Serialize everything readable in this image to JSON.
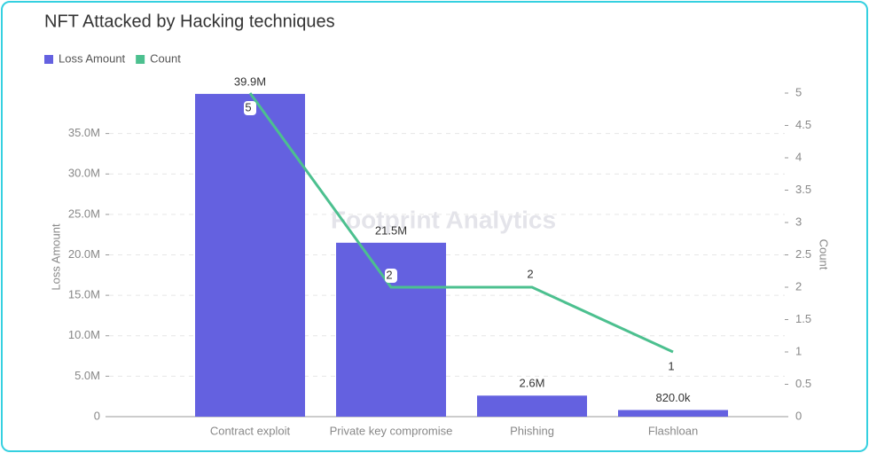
{
  "chart_data": {
    "type": "bar",
    "title": "NFT Attacked by Hacking techniques",
    "watermark": "Footprint Analytics",
    "ylabel": "Loss Amount",
    "y2label": "Count",
    "categories": [
      "Contract exploit",
      "Private key compromise",
      "Phishing",
      "Flashloan"
    ],
    "series": [
      {
        "name": "Loss Amount",
        "color": "#6461e0",
        "type": "bar",
        "values": [
          39900000,
          21500000,
          2600000,
          820000
        ],
        "value_labels": [
          "39.9M",
          "21.5M",
          "2.6M",
          "820.0k"
        ]
      },
      {
        "name": "Count",
        "color": "#4cc08f",
        "type": "line",
        "axis": "y2",
        "values": [
          5,
          2,
          2,
          1
        ]
      }
    ],
    "ylim": [
      0,
      40000000
    ],
    "yticks": [
      {
        "value": 0,
        "label": "0"
      },
      {
        "value": 5000000,
        "label": "5.0M"
      },
      {
        "value": 10000000,
        "label": "10.0M"
      },
      {
        "value": 15000000,
        "label": "15.0M"
      },
      {
        "value": 20000000,
        "label": "20.0M"
      },
      {
        "value": 25000000,
        "label": "25.0M"
      },
      {
        "value": 30000000,
        "label": "30.0M"
      },
      {
        "value": 35000000,
        "label": "35.0M"
      }
    ],
    "y2lim": [
      0,
      5
    ],
    "y2ticks": [
      0,
      0.5,
      1,
      1.5,
      2,
      2.5,
      3,
      3.5,
      4,
      4.5,
      5
    ],
    "grid": true
  }
}
